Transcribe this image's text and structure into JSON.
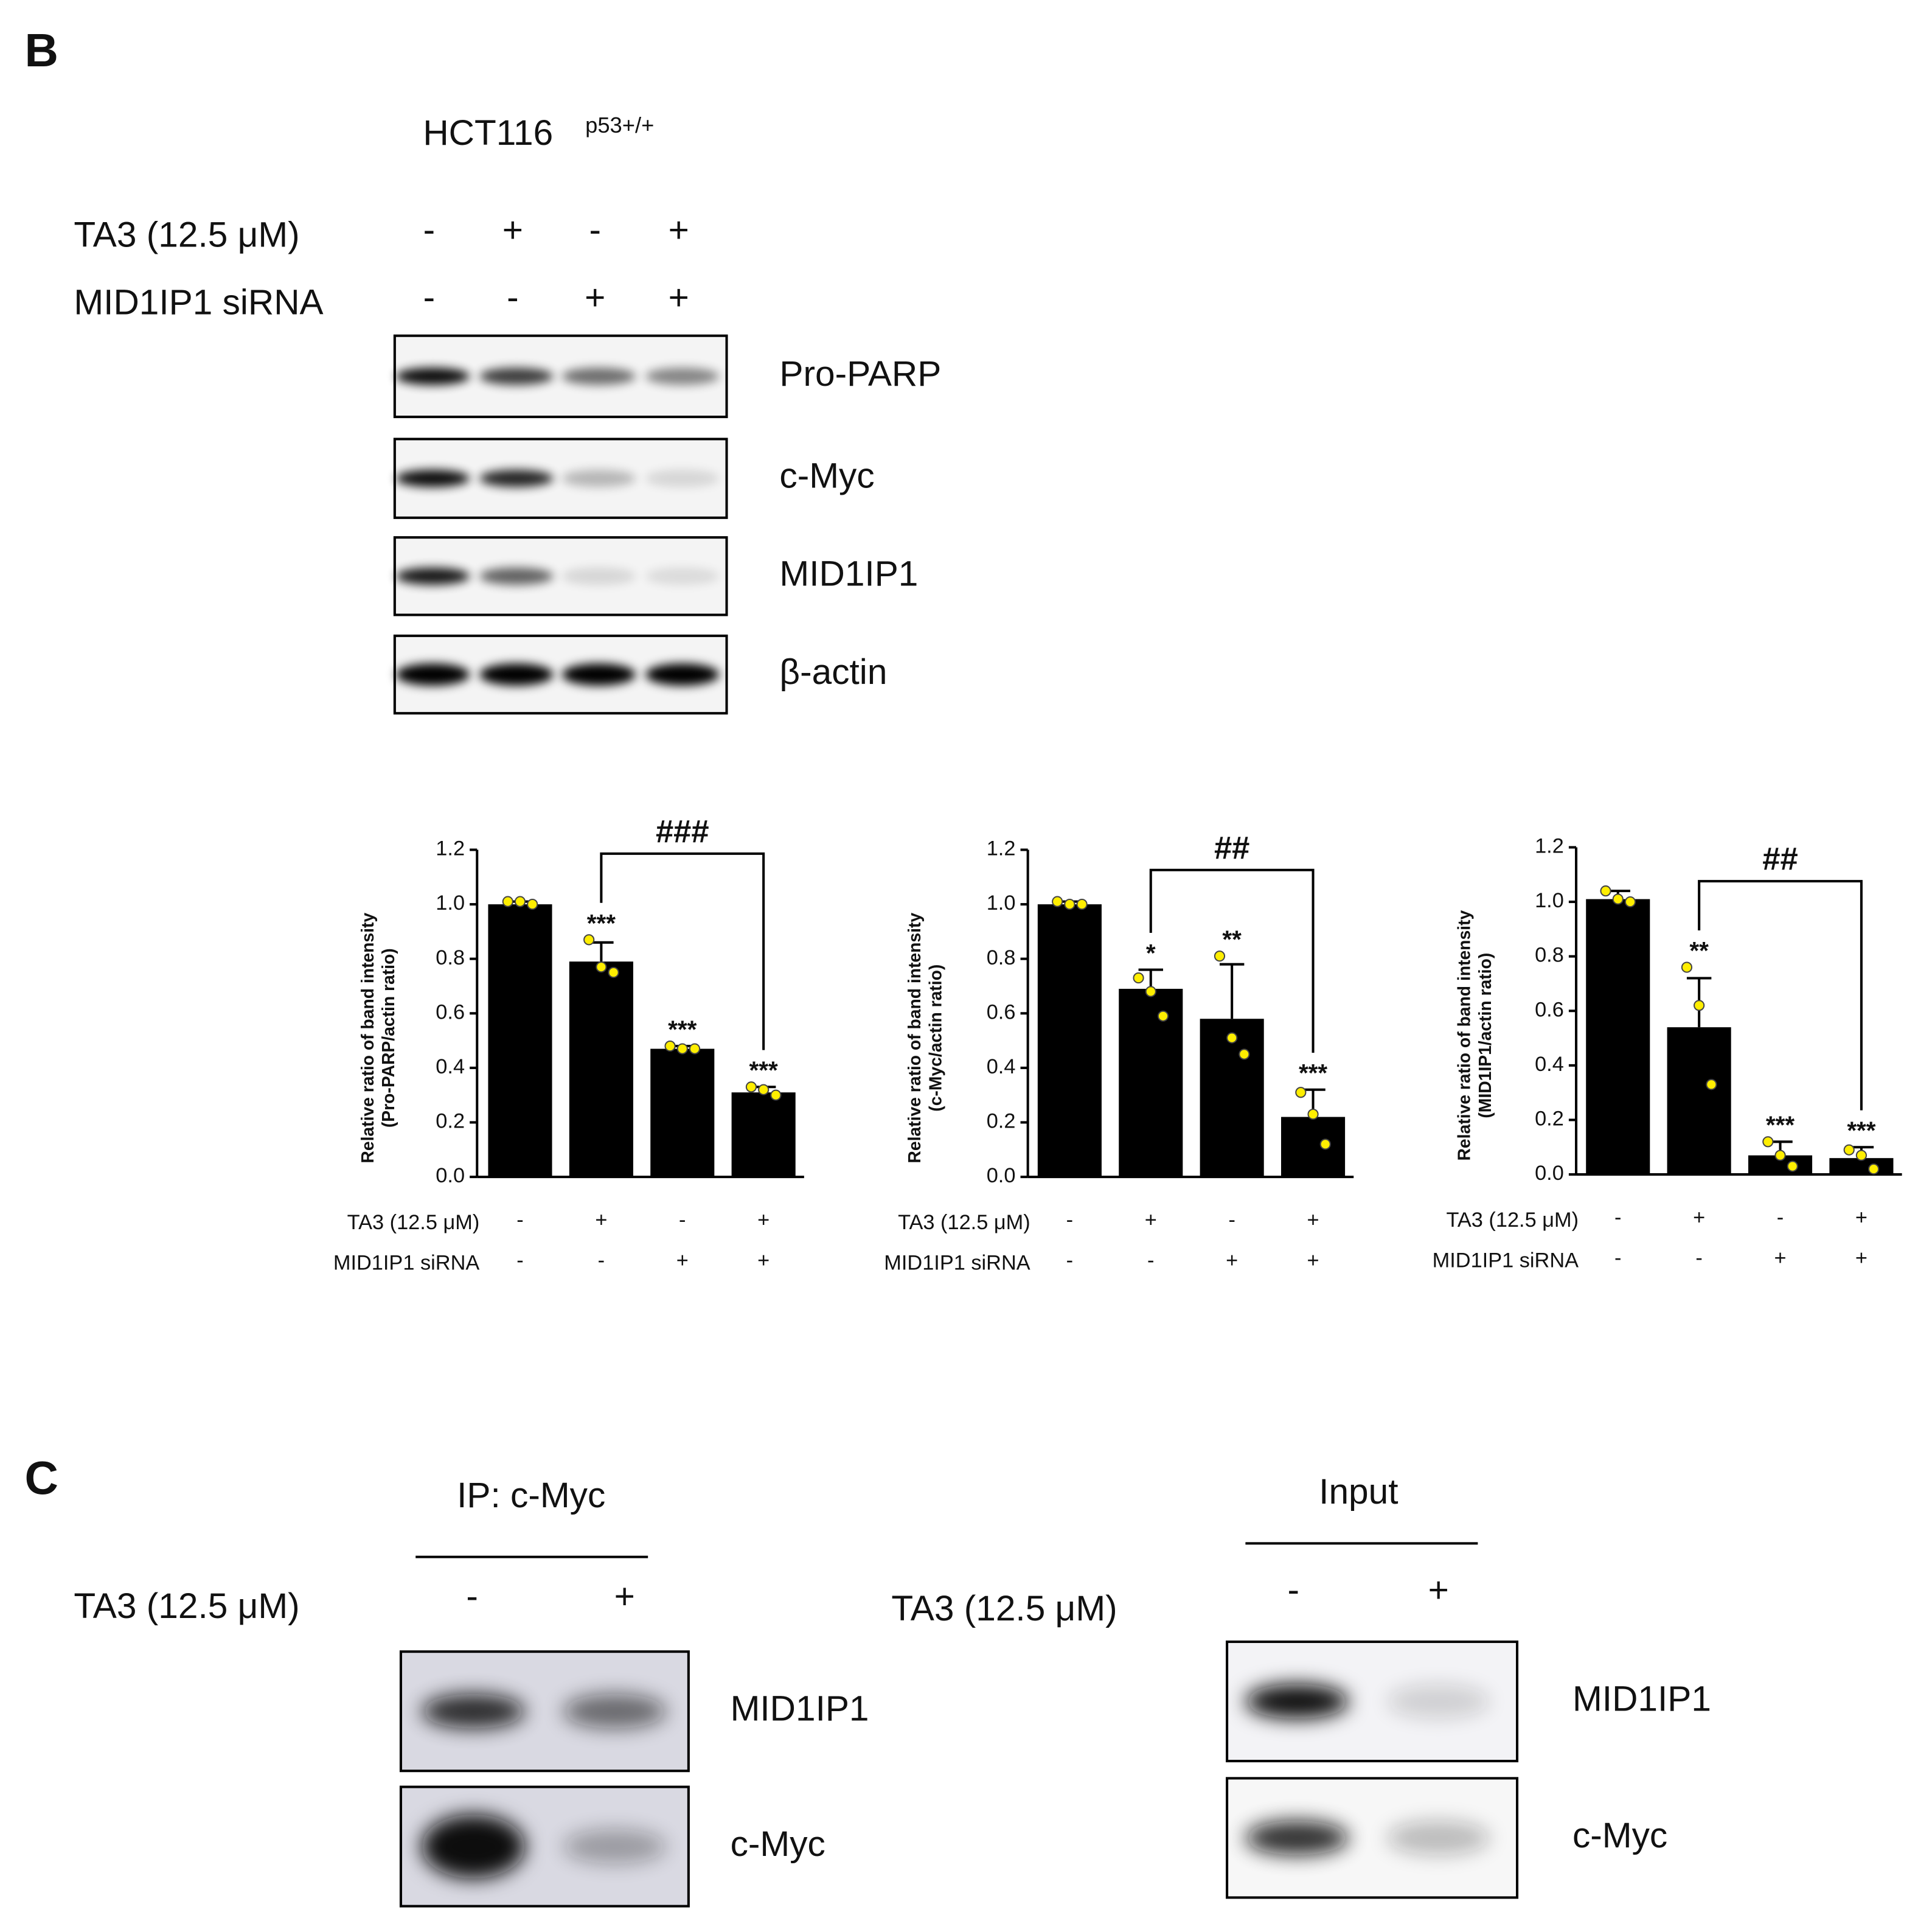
{
  "panel_b": {
    "label": "B",
    "cell_line": "HCT116",
    "cell_line_sup": "p53+/+",
    "treatments": [
      {
        "name": "TA3 (12.5 μM)",
        "signs": [
          "-",
          "+",
          "-",
          "+"
        ]
      },
      {
        "name": "MID1IP1 siRNA",
        "signs": [
          "-",
          "-",
          "+",
          "+"
        ]
      }
    ],
    "blots": [
      "Pro-PARP",
      "c-Myc",
      "MID1IP1",
      "β-actin"
    ]
  },
  "chart_data": [
    {
      "type": "bar",
      "ylabel": [
        "Relative ratio of band intensity",
        "(Pro-PARP/actin ratio)"
      ],
      "treatments": [
        {
          "name": "TA3 (12.5 μM)",
          "signs": [
            "-",
            "+",
            "-",
            "+"
          ]
        },
        {
          "name": "MID1IP1 siRNA",
          "signs": [
            "-",
            "-",
            "+",
            "+"
          ]
        }
      ],
      "values": [
        1.0,
        0.79,
        0.47,
        0.31
      ],
      "errors": [
        0.01,
        0.07,
        0.01,
        0.02
      ],
      "points": [
        [
          1.01,
          1.01,
          1.0
        ],
        [
          0.87,
          0.77,
          0.75
        ],
        [
          0.48,
          0.47,
          0.47
        ],
        [
          0.33,
          0.32,
          0.3
        ]
      ],
      "star_labels": [
        null,
        "***",
        "***",
        "***"
      ],
      "bracket": {
        "from": 1,
        "to": 3,
        "text": "###"
      },
      "color": "#000000",
      "point_color": "#ffee00",
      "ylim": [
        0,
        1.2
      ],
      "yticks": [
        {
          "value": 0,
          "label": "0.0"
        },
        0.2,
        0.4,
        0.6,
        0.8,
        {
          "value": 1,
          "label": "1.0"
        },
        1.2
      ]
    },
    {
      "type": "bar",
      "ylabel": [
        "Relative ratio of band intensity",
        "(c-Myc/actin ratio)"
      ],
      "treatments": [
        {
          "name": "TA3 (12.5 μM)",
          "signs": [
            "-",
            "+",
            "-",
            "+"
          ]
        },
        {
          "name": "MID1IP1 siRNA",
          "signs": [
            "-",
            "-",
            "+",
            "+"
          ]
        }
      ],
      "values": [
        1.0,
        0.69,
        0.58,
        0.22
      ],
      "errors": [
        0.01,
        0.07,
        0.2,
        0.1
      ],
      "points": [
        [
          1.01,
          1.0,
          1.0
        ],
        [
          0.73,
          0.68,
          0.59
        ],
        [
          0.81,
          0.51,
          0.45
        ],
        [
          0.31,
          0.23,
          0.12
        ]
      ],
      "star_labels": [
        null,
        "*",
        "**",
        "***"
      ],
      "bracket": {
        "from": 1,
        "to": 3,
        "text": "##"
      },
      "color": "#000000",
      "point_color": "#ffee00",
      "ylim": [
        0,
        1.2
      ],
      "yticks": [
        {
          "value": 0,
          "label": "0.0"
        },
        0.2,
        0.4,
        0.6,
        0.8,
        {
          "value": 1,
          "label": "1.0"
        },
        1.2
      ]
    },
    {
      "type": "bar",
      "ylabel": [
        "Relative ratio of band intensity",
        "(MID1IP1/actin ratio)"
      ],
      "treatments": [
        {
          "name": "TA3 (12.5 μM)",
          "signs": [
            "-",
            "+",
            "-",
            "+"
          ]
        },
        {
          "name": "MID1IP1 siRNA",
          "signs": [
            "-",
            "-",
            "+",
            "+"
          ]
        }
      ],
      "values": [
        1.01,
        0.54,
        0.07,
        0.06
      ],
      "errors": [
        0.03,
        0.18,
        0.05,
        0.04
      ],
      "points": [
        [
          1.04,
          1.01,
          1.0
        ],
        [
          0.76,
          0.62,
          0.33
        ],
        [
          0.12,
          0.07,
          0.03
        ],
        [
          0.09,
          0.07,
          0.02
        ]
      ],
      "star_labels": [
        null,
        "**",
        "***",
        "***"
      ],
      "bracket": {
        "from": 1,
        "to": 3,
        "text": "##"
      },
      "color": "#000000",
      "point_color": "#ffee00",
      "ylim": [
        0,
        1.2
      ],
      "yticks": [
        {
          "value": 0,
          "label": "0.0"
        },
        0.2,
        0.4,
        0.6,
        0.8,
        {
          "value": 1,
          "label": "1.0"
        },
        1.2
      ]
    }
  ],
  "panel_c": {
    "label": "C",
    "groups": [
      {
        "title": "IP: c-Myc",
        "treatment": "TA3 (12.5 μM)",
        "signs": [
          "-",
          "+"
        ],
        "blots": [
          "MID1IP1",
          "c-Myc"
        ]
      },
      {
        "title": "Input",
        "treatment": "TA3 (12.5 μM)",
        "signs": [
          "-",
          "+"
        ],
        "blots": [
          "MID1IP1",
          "c-Myc"
        ]
      }
    ]
  }
}
